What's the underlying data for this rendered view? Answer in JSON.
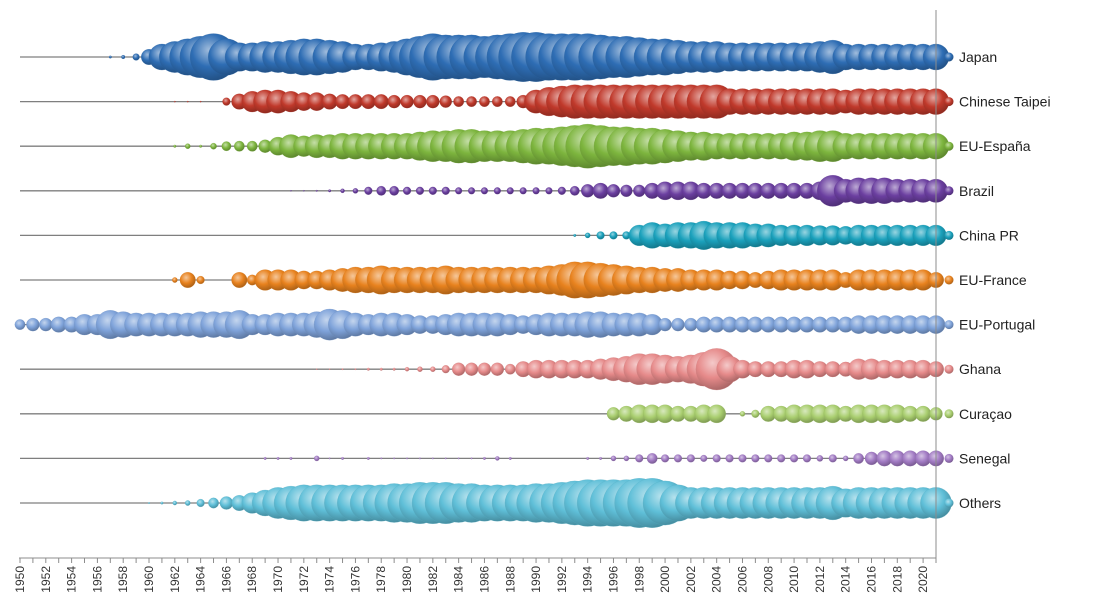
{
  "chart_data": {
    "type": "scatter",
    "subtype": "bubble",
    "title": "",
    "xlabel": "",
    "ylabel": "",
    "xlim": [
      1950,
      2021
    ],
    "x_ticks": [
      1950,
      1952,
      1954,
      1956,
      1958,
      1960,
      1962,
      1964,
      1966,
      1968,
      1970,
      1972,
      1974,
      1976,
      1978,
      1980,
      1982,
      1984,
      1986,
      1988,
      1990,
      1992,
      1994,
      1996,
      1998,
      2000,
      2002,
      2004,
      2006,
      2008,
      2010,
      2012,
      2014,
      2016,
      2018,
      2020
    ],
    "legend_position": "right",
    "grid": false,
    "value_note": "bubble size in relative units (0-10) per year",
    "series": [
      {
        "name": "Japan",
        "color": "#2E6DB4",
        "values": {
          "1957": 0.5,
          "1958": 0.7,
          "1959": 1.3,
          "1960": 3.0,
          "1961": 5.0,
          "1962": 6.0,
          "1963": 7.0,
          "1964": 8.0,
          "1965": 9.0,
          "1966": 7.0,
          "1967": 5.5,
          "1968": 5.5,
          "1969": 6.0,
          "1970": 6.0,
          "1971": 6.5,
          "1972": 7.0,
          "1973": 7.0,
          "1974": 6.5,
          "1975": 6.0,
          "1976": 5.0,
          "1977": 5.0,
          "1978": 5.5,
          "1979": 6.0,
          "1980": 7.0,
          "1981": 8.0,
          "1982": 9.0,
          "1983": 8.5,
          "1984": 8.5,
          "1985": 8.5,
          "1986": 8.0,
          "1987": 8.5,
          "1988": 9.0,
          "1989": 9.5,
          "1990": 9.5,
          "1991": 9.0,
          "1992": 9.0,
          "1993": 9.0,
          "1994": 9.0,
          "1995": 8.5,
          "1996": 8.0,
          "1997": 8.0,
          "1998": 7.5,
          "1999": 7.0,
          "2000": 7.0,
          "2001": 6.5,
          "2002": 6.0,
          "2003": 6.0,
          "2004": 6.0,
          "2005": 5.5,
          "2006": 5.5,
          "2007": 5.5,
          "2008": 5.5,
          "2009": 5.5,
          "2010": 5.5,
          "2011": 5.5,
          "2012": 6.0,
          "2013": 6.5,
          "2014": 5.0,
          "2015": 5.0,
          "2016": 5.0,
          "2017": 5.0,
          "2018": 5.0,
          "2019": 5.0,
          "2020": 5.0,
          "2021": 5.0
        }
      },
      {
        "name": "Chinese Taipei",
        "color": "#C0392B",
        "values": {
          "1962": 0.2,
          "1963": 0.2,
          "1964": 0.2,
          "1966": 1.5,
          "1967": 3.0,
          "1968": 4.0,
          "1969": 4.5,
          "1970": 4.5,
          "1971": 4.0,
          "1972": 3.5,
          "1973": 3.5,
          "1974": 3.0,
          "1975": 2.8,
          "1976": 2.8,
          "1977": 2.8,
          "1978": 2.8,
          "1979": 2.5,
          "1980": 2.5,
          "1981": 2.5,
          "1982": 2.5,
          "1983": 2.3,
          "1984": 2.0,
          "1985": 2.0,
          "1986": 2.0,
          "1987": 2.0,
          "1988": 2.0,
          "1989": 2.5,
          "1990": 4.5,
          "1991": 5.5,
          "1992": 6.0,
          "1993": 6.5,
          "1994": 6.5,
          "1995": 6.5,
          "1996": 6.5,
          "1997": 6.5,
          "1998": 6.5,
          "1999": 6.5,
          "2000": 6.5,
          "2001": 6.5,
          "2002": 6.5,
          "2003": 6.5,
          "2004": 6.5,
          "2005": 5.0,
          "2006": 5.0,
          "2007": 5.0,
          "2008": 5.0,
          "2009": 5.0,
          "2010": 5.0,
          "2011": 5.0,
          "2012": 5.0,
          "2013": 5.0,
          "2014": 4.5,
          "2015": 5.0,
          "2016": 5.0,
          "2017": 5.0,
          "2018": 5.0,
          "2019": 5.0,
          "2020": 5.0,
          "2021": 5.0
        }
      },
      {
        "name": "EU-España",
        "color": "#7DB53E",
        "values": {
          "1962": 0.5,
          "1963": 1.0,
          "1964": 0.5,
          "1965": 1.2,
          "1966": 1.8,
          "1967": 2.0,
          "1968": 2.0,
          "1969": 2.5,
          "1970": 3.5,
          "1971": 4.5,
          "1972": 4.0,
          "1973": 4.5,
          "1974": 4.5,
          "1975": 5.0,
          "1976": 5.0,
          "1977": 5.0,
          "1978": 5.0,
          "1979": 5.0,
          "1980": 5.0,
          "1981": 5.5,
          "1982": 6.0,
          "1983": 6.0,
          "1984": 6.5,
          "1985": 6.5,
          "1986": 6.0,
          "1987": 6.0,
          "1988": 6.0,
          "1989": 6.5,
          "1990": 7.0,
          "1991": 7.0,
          "1992": 7.5,
          "1993": 8.0,
          "1994": 8.5,
          "1995": 8.0,
          "1996": 7.5,
          "1997": 7.5,
          "1998": 7.0,
          "1999": 7.0,
          "2000": 6.5,
          "2001": 6.0,
          "2002": 5.5,
          "2003": 5.5,
          "2004": 5.0,
          "2005": 5.0,
          "2006": 5.0,
          "2007": 5.0,
          "2008": 5.0,
          "2009": 5.0,
          "2010": 5.5,
          "2011": 5.5,
          "2012": 6.0,
          "2013": 6.0,
          "2014": 5.0,
          "2015": 5.0,
          "2016": 5.0,
          "2017": 5.0,
          "2018": 5.0,
          "2019": 5.0,
          "2020": 5.0,
          "2021": 5.0
        }
      },
      {
        "name": "Brazil",
        "color": "#6B3FA0",
        "values": {
          "1971": 0.2,
          "1972": 0.2,
          "1973": 0.3,
          "1974": 0.5,
          "1975": 0.8,
          "1976": 1.0,
          "1977": 1.5,
          "1978": 1.8,
          "1979": 1.8,
          "1980": 1.5,
          "1981": 1.5,
          "1982": 1.5,
          "1983": 1.5,
          "1984": 1.3,
          "1985": 1.3,
          "1986": 1.3,
          "1987": 1.3,
          "1988": 1.3,
          "1989": 1.3,
          "1990": 1.3,
          "1991": 1.3,
          "1992": 1.5,
          "1993": 1.8,
          "1994": 2.5,
          "1995": 3.0,
          "1996": 2.5,
          "1997": 2.3,
          "1998": 2.3,
          "1999": 3.0,
          "2000": 3.5,
          "2001": 3.5,
          "2002": 3.5,
          "2003": 3.0,
          "2004": 3.0,
          "2005": 3.0,
          "2006": 3.0,
          "2007": 3.0,
          "2008": 3.0,
          "2009": 3.0,
          "2010": 3.0,
          "2011": 3.0,
          "2012": 3.5,
          "2013": 6.0,
          "2014": 4.5,
          "2015": 5.0,
          "2016": 5.0,
          "2017": 5.0,
          "2018": 4.5,
          "2019": 4.5,
          "2020": 4.5,
          "2021": 4.5
        }
      },
      {
        "name": "China PR",
        "color": "#1BA1BC",
        "values": {
          "1993": 0.5,
          "1994": 1.0,
          "1995": 1.5,
          "1996": 1.5,
          "1997": 1.5,
          "1998": 4.0,
          "1999": 5.0,
          "2000": 4.5,
          "2001": 5.0,
          "2002": 5.0,
          "2003": 5.5,
          "2004": 5.0,
          "2005": 5.0,
          "2006": 5.0,
          "2007": 4.5,
          "2008": 4.5,
          "2009": 4.0,
          "2010": 4.0,
          "2011": 4.0,
          "2012": 3.8,
          "2013": 3.8,
          "2014": 3.5,
          "2015": 4.0,
          "2016": 4.0,
          "2017": 4.0,
          "2018": 4.0,
          "2019": 4.0,
          "2020": 4.0,
          "2021": 4.0
        }
      },
      {
        "name": "EU-France",
        "color": "#E8821E",
        "values": {
          "1962": 1.0,
          "1963": 3.0,
          "1964": 1.5,
          "1967": 3.0,
          "1968": 2.0,
          "1969": 4.0,
          "1970": 4.0,
          "1971": 4.0,
          "1972": 3.5,
          "1973": 3.5,
          "1974": 4.0,
          "1975": 4.5,
          "1976": 5.0,
          "1977": 5.0,
          "1978": 5.5,
          "1979": 5.0,
          "1980": 5.0,
          "1981": 5.0,
          "1982": 5.0,
          "1983": 5.5,
          "1984": 5.0,
          "1985": 5.0,
          "1986": 5.0,
          "1987": 5.0,
          "1988": 5.0,
          "1989": 5.0,
          "1990": 5.0,
          "1991": 5.5,
          "1992": 6.0,
          "1993": 7.0,
          "1994": 7.0,
          "1995": 6.5,
          "1996": 6.0,
          "1997": 5.5,
          "1998": 5.0,
          "1999": 5.0,
          "2000": 4.5,
          "2001": 4.5,
          "2002": 4.0,
          "2003": 4.0,
          "2004": 4.0,
          "2005": 3.5,
          "2006": 3.5,
          "2007": 3.0,
          "2008": 3.5,
          "2009": 4.0,
          "2010": 4.0,
          "2011": 4.0,
          "2012": 4.0,
          "2013": 4.0,
          "2014": 3.0,
          "2015": 4.0,
          "2016": 4.0,
          "2017": 4.0,
          "2018": 4.0,
          "2019": 4.0,
          "2020": 4.0,
          "2021": 3.0
        }
      },
      {
        "name": "EU-Portugal",
        "color": "#7FA3DA",
        "values": {
          "1950": 2.0,
          "1951": 2.5,
          "1952": 2.5,
          "1953": 3.0,
          "1954": 3.0,
          "1955": 4.0,
          "1956": 4.0,
          "1957": 5.5,
          "1958": 5.0,
          "1959": 4.5,
          "1960": 4.5,
          "1961": 4.5,
          "1962": 4.5,
          "1963": 4.5,
          "1964": 5.0,
          "1965": 5.0,
          "1966": 5.0,
          "1967": 5.5,
          "1968": 4.0,
          "1969": 4.0,
          "1970": 4.5,
          "1971": 4.5,
          "1972": 4.5,
          "1973": 5.0,
          "1974": 6.0,
          "1975": 5.5,
          "1976": 4.5,
          "1977": 4.0,
          "1978": 4.5,
          "1979": 4.5,
          "1980": 4.0,
          "1981": 3.5,
          "1982": 3.5,
          "1983": 4.0,
          "1984": 4.5,
          "1985": 4.5,
          "1986": 4.5,
          "1987": 4.5,
          "1988": 4.0,
          "1989": 3.5,
          "1990": 4.0,
          "1991": 4.5,
          "1992": 4.5,
          "1993": 4.5,
          "1994": 5.0,
          "1995": 5.0,
          "1996": 4.5,
          "1997": 4.5,
          "1998": 4.5,
          "1999": 4.0,
          "2000": 2.5,
          "2001": 2.5,
          "2002": 2.5,
          "2003": 3.0,
          "2004": 3.0,
          "2005": 3.0,
          "2006": 3.0,
          "2007": 3.0,
          "2008": 3.0,
          "2009": 3.0,
          "2010": 3.0,
          "2011": 3.0,
          "2012": 3.0,
          "2013": 3.0,
          "2014": 3.0,
          "2015": 3.5,
          "2016": 3.5,
          "2017": 3.5,
          "2018": 3.5,
          "2019": 3.5,
          "2020": 3.5,
          "2021": 3.5
        }
      },
      {
        "name": "Ghana",
        "color": "#E68A8A",
        "values": {
          "1973": 0.2,
          "1974": 0.2,
          "1975": 0.3,
          "1976": 0.3,
          "1977": 0.5,
          "1978": 0.5,
          "1979": 0.5,
          "1980": 0.8,
          "1981": 1.0,
          "1982": 1.0,
          "1983": 1.5,
          "1984": 2.5,
          "1985": 2.5,
          "1986": 2.5,
          "1987": 2.5,
          "1988": 2.0,
          "1989": 3.0,
          "1990": 3.5,
          "1991": 3.5,
          "1992": 3.5,
          "1993": 3.5,
          "1994": 3.5,
          "1995": 4.0,
          "1996": 4.5,
          "1997": 5.0,
          "1998": 6.0,
          "1999": 6.0,
          "2000": 5.5,
          "2001": 5.0,
          "2002": 5.5,
          "2003": 6.5,
          "2004": 8.0,
          "2005": 5.0,
          "2006": 3.5,
          "2007": 3.0,
          "2008": 3.0,
          "2009": 3.0,
          "2010": 3.5,
          "2011": 3.5,
          "2012": 3.0,
          "2013": 3.0,
          "2014": 2.8,
          "2015": 4.0,
          "2016": 4.0,
          "2017": 3.5,
          "2018": 3.5,
          "2019": 3.5,
          "2020": 3.5,
          "2021": 3.0
        }
      },
      {
        "name": "Curaçao",
        "color": "#A9CE6F",
        "values": {
          "1996": 2.5,
          "1997": 3.0,
          "1998": 3.5,
          "1999": 3.5,
          "2000": 3.5,
          "2001": 3.0,
          "2002": 3.0,
          "2003": 3.5,
          "2004": 3.5,
          "2006": 1.0,
          "2007": 1.5,
          "2008": 3.0,
          "2009": 3.0,
          "2010": 3.5,
          "2011": 3.5,
          "2012": 3.5,
          "2013": 3.5,
          "2014": 3.0,
          "2015": 3.5,
          "2016": 3.5,
          "2017": 3.5,
          "2018": 3.5,
          "2019": 3.0,
          "2020": 3.0,
          "2021": 2.5
        }
      },
      {
        "name": "Senegal",
        "color": "#A27BC4",
        "values": {
          "1969": 0.5,
          "1970": 0.5,
          "1971": 0.5,
          "1973": 1.0,
          "1974": 0.3,
          "1975": 0.5,
          "1977": 0.5,
          "1978": 0.3,
          "1979": 0.3,
          "1980": 0.3,
          "1981": 0.3,
          "1982": 0.3,
          "1983": 0.3,
          "1984": 0.3,
          "1985": 0.3,
          "1986": 0.5,
          "1987": 0.8,
          "1988": 0.5,
          "1994": 0.5,
          "1995": 0.5,
          "1996": 1.0,
          "1997": 1.0,
          "1998": 1.5,
          "1999": 2.0,
          "2000": 1.5,
          "2001": 1.5,
          "2002": 1.5,
          "2003": 1.3,
          "2004": 1.5,
          "2005": 1.5,
          "2006": 1.5,
          "2007": 1.5,
          "2008": 1.5,
          "2009": 1.5,
          "2010": 1.5,
          "2011": 1.5,
          "2012": 1.2,
          "2013": 1.5,
          "2014": 1.0,
          "2015": 2.0,
          "2016": 2.5,
          "2017": 3.0,
          "2018": 3.0,
          "2019": 3.0,
          "2020": 3.0,
          "2021": 3.0
        }
      },
      {
        "name": "Others",
        "color": "#5FBFD8",
        "values": {
          "1960": 0.3,
          "1961": 0.5,
          "1962": 0.8,
          "1963": 1.0,
          "1964": 1.5,
          "1965": 2.0,
          "1966": 2.5,
          "1967": 3.0,
          "1968": 4.0,
          "1969": 5.0,
          "1970": 6.0,
          "1971": 6.5,
          "1972": 7.0,
          "1973": 7.0,
          "1974": 7.0,
          "1975": 7.0,
          "1976": 7.0,
          "1977": 7.0,
          "1978": 7.0,
          "1979": 7.5,
          "1980": 7.5,
          "1981": 8.0,
          "1982": 8.0,
          "1983": 8.0,
          "1984": 7.5,
          "1985": 7.5,
          "1986": 7.0,
          "1987": 7.0,
          "1988": 7.0,
          "1989": 7.0,
          "1990": 7.5,
          "1991": 7.5,
          "1992": 8.0,
          "1993": 8.5,
          "1994": 9.0,
          "1995": 9.0,
          "1996": 9.0,
          "1997": 9.0,
          "1998": 9.5,
          "1999": 9.5,
          "2000": 8.5,
          "2001": 7.0,
          "2002": 6.0,
          "2003": 6.0,
          "2004": 6.0,
          "2005": 6.0,
          "2006": 6.0,
          "2007": 6.0,
          "2008": 6.0,
          "2009": 6.0,
          "2010": 6.0,
          "2011": 6.0,
          "2012": 6.0,
          "2013": 6.5,
          "2014": 5.5,
          "2015": 6.0,
          "2016": 6.0,
          "2017": 6.0,
          "2018": 6.0,
          "2019": 6.0,
          "2020": 6.0,
          "2021": 6.0
        }
      }
    ]
  }
}
